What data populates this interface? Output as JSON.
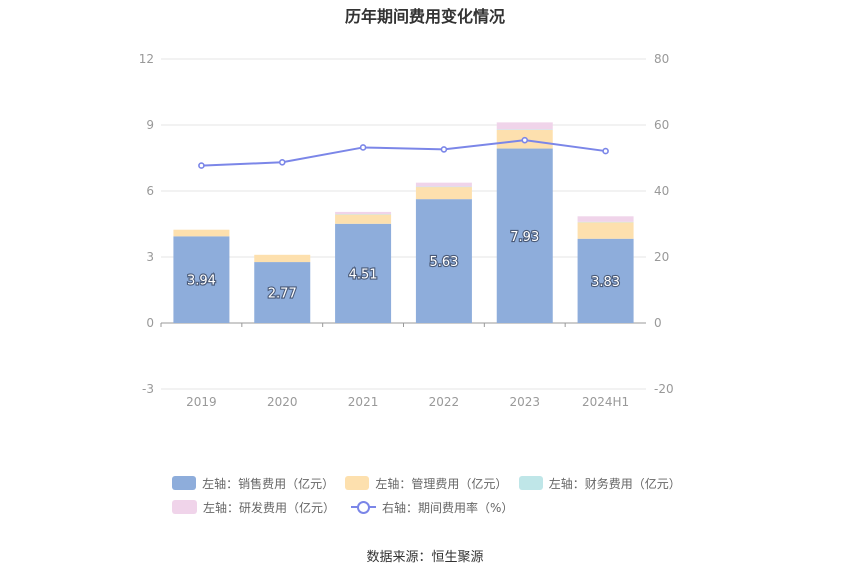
{
  "title": "历年期间费用变化情况",
  "source": "数据来源：恒生聚源",
  "colors": {
    "sales": "#8eaddb",
    "admin": "#fde0ae",
    "finance": "#bfe6e8",
    "rd": "#f0d4ea",
    "rate_line": "#7b86e8",
    "grid": "#e6e6e6",
    "axis_text": "#999999"
  },
  "legend": [
    {
      "label": "左轴：销售费用（亿元）",
      "key": "sales"
    },
    {
      "label": "左轴：管理费用（亿元）",
      "key": "admin"
    },
    {
      "label": "左轴：财务费用（亿元）",
      "key": "finance"
    },
    {
      "label": "左轴：研发费用（亿元）",
      "key": "rd"
    },
    {
      "label": "右轴：期间费用率（%）",
      "key": "rate_line"
    }
  ],
  "chart_data": {
    "type": "bar",
    "stacked": true,
    "categories": [
      "2019",
      "2020",
      "2021",
      "2022",
      "2023",
      "2024H1"
    ],
    "series": [
      {
        "name": "左轴：销售费用（亿元）",
        "axis": "left",
        "values": [
          3.94,
          2.77,
          4.51,
          5.63,
          7.93,
          3.83
        ],
        "labels": [
          "3.94",
          "2.77",
          "4.51",
          "5.63",
          "7.93",
          "3.83"
        ]
      },
      {
        "name": "左轴：管理费用（亿元）",
        "axis": "left",
        "values": [
          0.3,
          0.33,
          0.42,
          0.55,
          0.85,
          0.75
        ]
      },
      {
        "name": "左轴：财务费用（亿元）",
        "axis": "left",
        "values": [
          0.0,
          0.0,
          0.02,
          0.02,
          0.02,
          0.02
        ]
      },
      {
        "name": "左轴：研发费用（亿元）",
        "axis": "left",
        "values": [
          0.0,
          0.0,
          0.1,
          0.18,
          0.32,
          0.25
        ]
      },
      {
        "name": "右轴：期间费用率（%）",
        "axis": "right",
        "type": "line",
        "values": [
          47.7,
          48.7,
          53.2,
          52.6,
          55.4,
          52.1
        ]
      }
    ],
    "y_left": {
      "min": -3,
      "max": 12,
      "ticks": [
        "12",
        "9",
        "6",
        "3",
        "0",
        "-3"
      ]
    },
    "y_right": {
      "min": -20,
      "max": 80,
      "ticks": [
        "80",
        "60",
        "40",
        "20",
        "0",
        "-20"
      ]
    },
    "grid": true,
    "legend_position": "bottom"
  }
}
